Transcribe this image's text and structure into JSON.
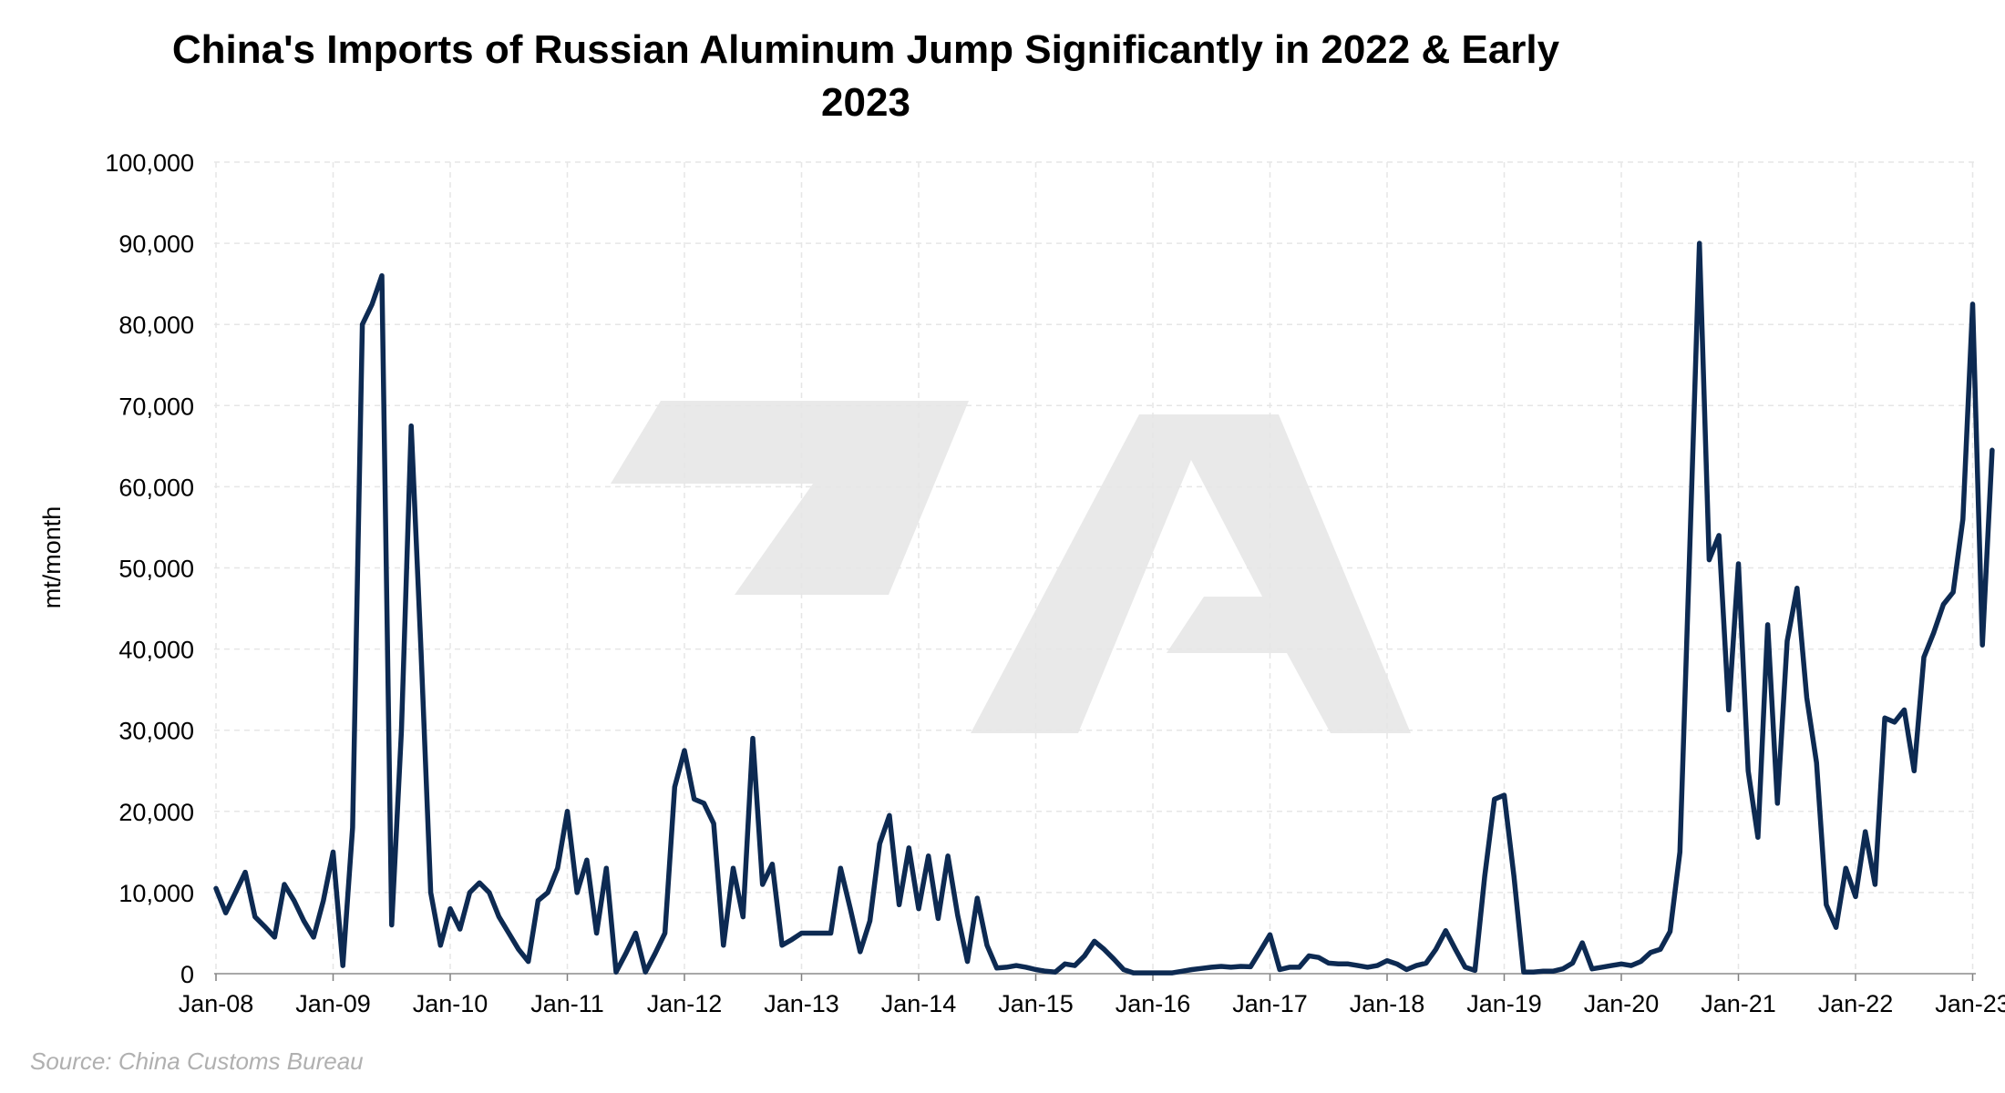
{
  "chart_data": {
    "type": "line",
    "title": "China's Imports of Russian Aluminum Jump Significantly in 2022 & Early 2023",
    "xlabel": "",
    "ylabel": "mt/month",
    "ylim": [
      0,
      100000
    ],
    "yticks": [
      "0",
      "10,000",
      "20,000",
      "30,000",
      "40,000",
      "50,000",
      "60,000",
      "70,000",
      "80,000",
      "90,000",
      "100,000"
    ],
    "xtick_labels": [
      "Jan-08",
      "Jan-09",
      "Jan-10",
      "Jan-11",
      "Jan-12",
      "Jan-13",
      "Jan-14",
      "Jan-15",
      "Jan-16",
      "Jan-17",
      "Jan-18",
      "Jan-19",
      "Jan-20",
      "Jan-21",
      "Jan-22",
      "Jan-23"
    ],
    "x_start": "Jan-08",
    "x_end": "Mar-23",
    "grid": true,
    "line_color": "#0d2a52",
    "grid_color": "#e6e6e6",
    "series": [
      {
        "values": [
          10500,
          7500,
          10000,
          12500,
          7000,
          5800,
          4500,
          11000,
          9000,
          6500,
          4500,
          9000,
          15000,
          1000,
          18000,
          80000,
          82500,
          86000,
          6000,
          30000,
          67500,
          40000,
          10000,
          3500,
          8000,
          5500,
          10000,
          11200,
          10000,
          7000,
          5000,
          3000,
          1500,
          9000,
          10000,
          13000,
          20000,
          10000,
          14000,
          5000,
          13000,
          200,
          2500,
          5000,
          200,
          2500,
          5000,
          23000,
          27500,
          21500,
          21000,
          18500,
          3500,
          13000,
          7000,
          29000,
          11000,
          13500,
          3500,
          4200,
          5000,
          5000,
          5000,
          5000,
          13000,
          8000,
          2700,
          6500,
          16000,
          19500,
          8500,
          15500,
          8000,
          14500,
          6800,
          14500,
          7200,
          1500,
          9300,
          3500,
          700,
          800,
          1000,
          800,
          500,
          300,
          200,
          1200,
          1000,
          2200,
          4000,
          3000,
          1800,
          500,
          100,
          100,
          100,
          100,
          100,
          300,
          500,
          650,
          800,
          900,
          800,
          900,
          850,
          2800,
          4800,
          500,
          800,
          800,
          2200,
          2000,
          1300,
          1200,
          1200,
          1000,
          800,
          1000,
          1600,
          1200,
          500,
          1000,
          1300,
          3000,
          5300,
          3000,
          800,
          400,
          12000,
          21500,
          22000,
          12000,
          200,
          200,
          300,
          300,
          600,
          1300,
          3800,
          600,
          800,
          1000,
          1200,
          1000,
          1500,
          2600,
          3000,
          5200,
          15000,
          52000,
          90000,
          51000,
          54000,
          32500,
          50500,
          25000,
          16800,
          43000,
          21000,
          41000,
          47500,
          34000,
          26000,
          8500,
          5700,
          13000,
          9500,
          17500,
          11000,
          31500,
          31000,
          32500,
          25000,
          39000,
          42000,
          45500,
          47000,
          56000,
          82500,
          40500,
          64500
        ]
      }
    ]
  },
  "source_note": "Source: China Customs Bureau"
}
